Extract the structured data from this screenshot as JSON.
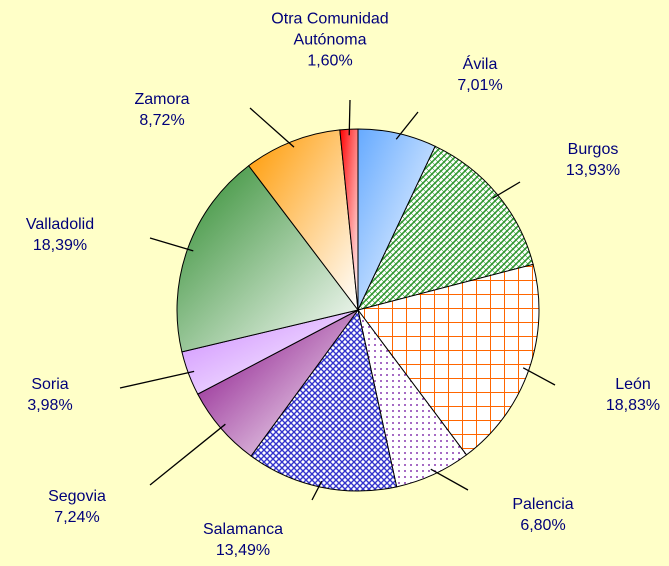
{
  "chart_data": {
    "type": "pie",
    "categories": [
      "Ávila",
      "Burgos",
      "León",
      "Palencia",
      "Salamanca",
      "Segovia",
      "Soria",
      "Valladolid",
      "Zamora",
      "Otra Comunidad Autónoma"
    ],
    "values": [
      7.01,
      13.93,
      18.83,
      6.8,
      13.49,
      7.24,
      3.98,
      18.39,
      8.72,
      1.6
    ],
    "value_labels": [
      "7,01%",
      "13,93%",
      "18,83%",
      "6,80%",
      "13,49%",
      "7,24%",
      "3,98%",
      "18,39%",
      "8,72%",
      "1,60%"
    ],
    "colors": [
      "#66aaff",
      "#339933",
      "#ff6600",
      "#660099",
      "#3333cc",
      "#800080",
      "#cc88ff",
      "#2e8b2e",
      "#ff9900",
      "#ff0000"
    ],
    "fills": [
      "gradient",
      "hatch",
      "grid",
      "dots",
      "cross",
      "gradient",
      "gradient",
      "gradient",
      "gradient",
      "gradient"
    ]
  }
}
